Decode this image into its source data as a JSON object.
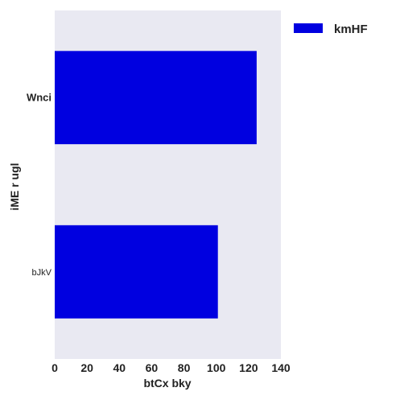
{
  "chart_data": {
    "type": "bar",
    "orientation": "horizontal",
    "categories": [
      "Wnci",
      "bJkV"
    ],
    "series": [
      {
        "name": "kmHF",
        "values": [
          125,
          101
        ],
        "color": "#0000e0"
      }
    ],
    "xlabel": "btCx bky",
    "ylabel": "iME r ugl",
    "xlim": [
      0,
      140
    ],
    "xticks": [
      0,
      20,
      40,
      60,
      80,
      100,
      120,
      140
    ],
    "grid": false,
    "legend_position": "top-right",
    "background_color": "#e9e9f2"
  }
}
